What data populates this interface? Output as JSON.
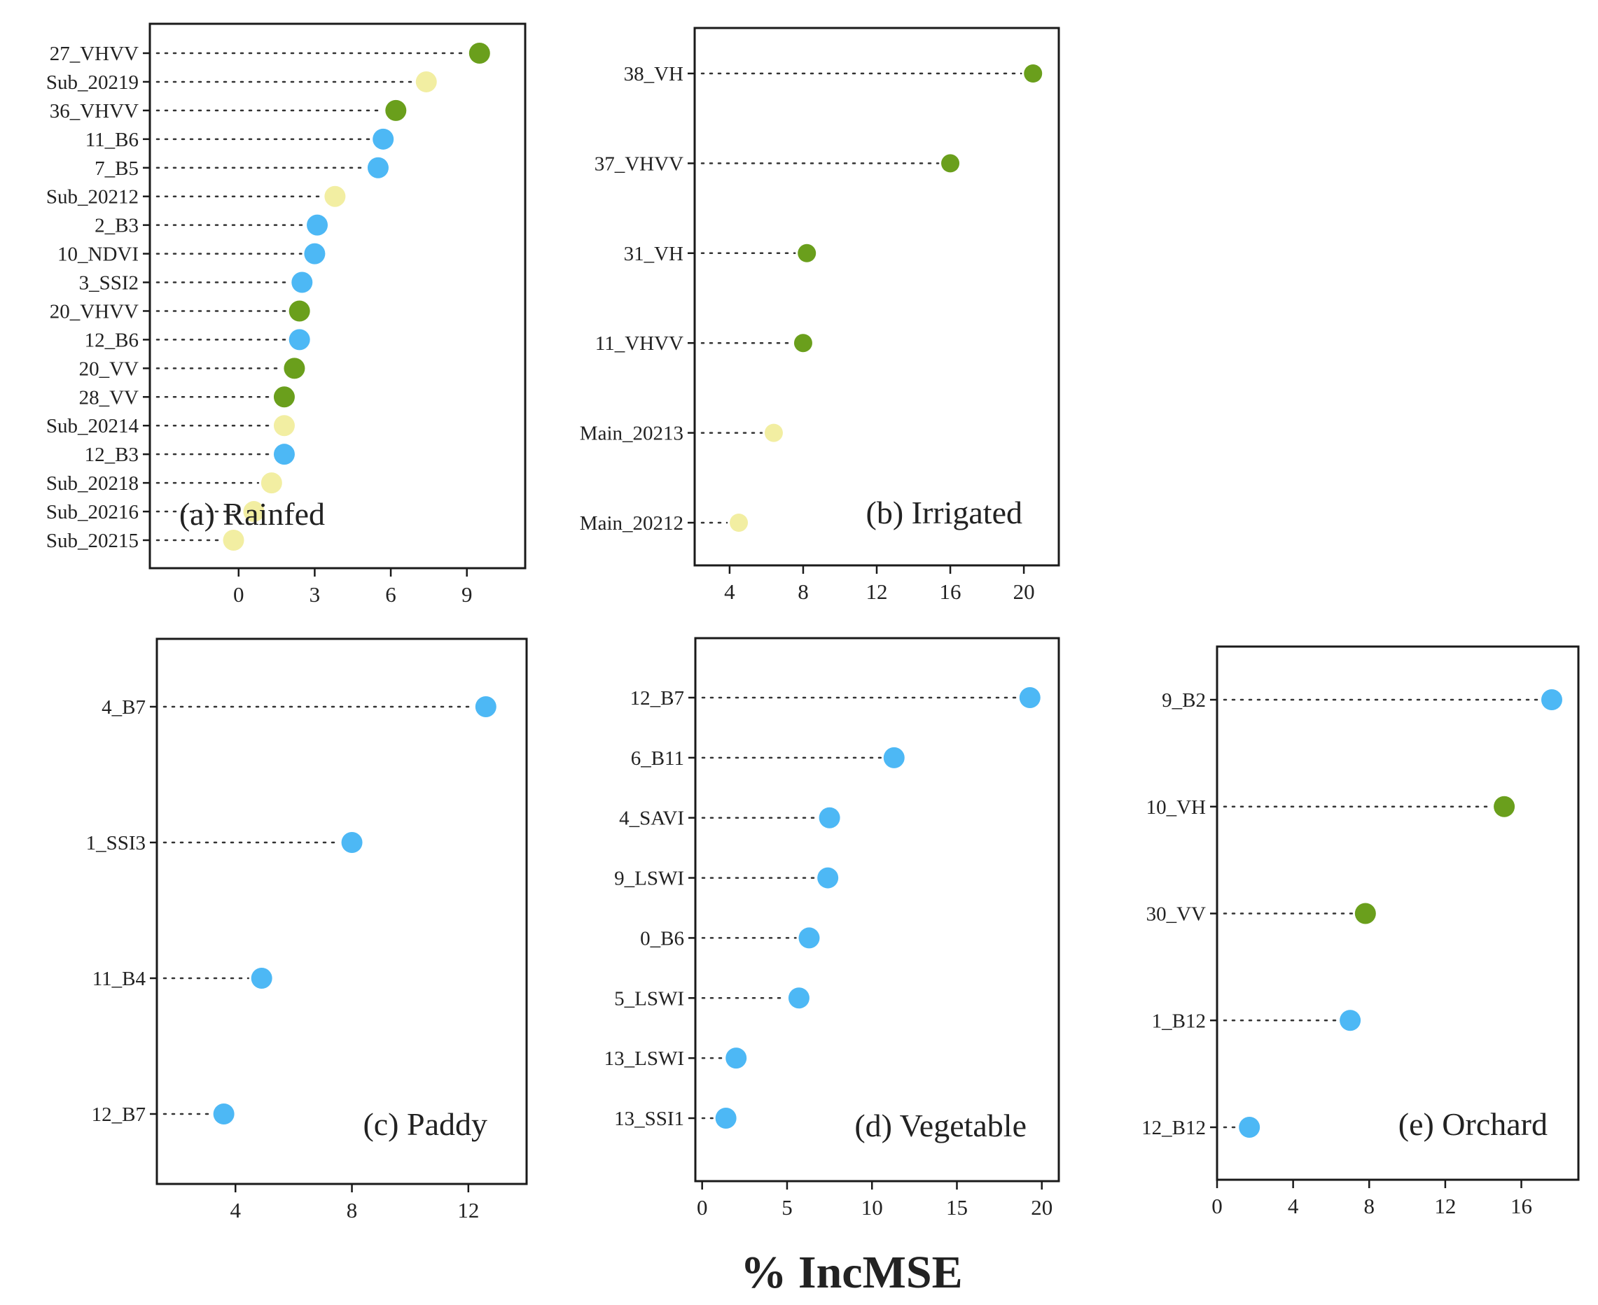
{
  "figure": {
    "xaxis_title": "% IncMSE",
    "colors": {
      "sentinel1": "#6a9f1c",
      "sentinel2": "#4db8f5",
      "phenology": "#f2eea2",
      "leader": "#333333",
      "axis": "#1a1a1a"
    }
  },
  "chart_data": [
    {
      "type": "scatter",
      "title": "(a) Rainfed",
      "xlabel": "% IncMSE",
      "xlim": [
        -3.5,
        11.3
      ],
      "xticks": [
        0,
        3,
        6,
        9
      ],
      "categories": [
        "27_VHVV",
        "Sub_20219",
        "36_VHVV",
        "11_B6",
        "7_B5",
        "Sub_20212",
        "2_B3",
        "10_NDVI",
        "3_SSI2",
        "20_VHVV",
        "12_B6",
        "20_VV",
        "28_VV",
        "Sub_20214",
        "12_B3",
        "Sub_20218",
        "Sub_20216",
        "Sub_20215"
      ],
      "values": [
        9.5,
        7.4,
        6.2,
        5.7,
        5.5,
        3.8,
        3.1,
        3.0,
        2.5,
        2.4,
        2.4,
        2.2,
        1.8,
        1.8,
        1.8,
        1.3,
        0.6,
        -0.2
      ],
      "groups": [
        "sentinel1",
        "phenology",
        "sentinel1",
        "sentinel2",
        "sentinel2",
        "phenology",
        "sentinel2",
        "sentinel2",
        "sentinel2",
        "sentinel1",
        "sentinel2",
        "sentinel1",
        "sentinel1",
        "phenology",
        "sentinel2",
        "phenology",
        "phenology",
        "phenology"
      ]
    },
    {
      "type": "scatter",
      "title": "(b) Irrigated",
      "xlabel": "% IncMSE",
      "xlim": [
        2.1,
        21.9
      ],
      "xticks": [
        4,
        8,
        12,
        16,
        20
      ],
      "categories": [
        "38_VH",
        "37_VHVV",
        "31_VH",
        "11_VHVV",
        "Main_20213",
        "Main_20212"
      ],
      "values": [
        20.5,
        16.0,
        8.2,
        8.0,
        6.4,
        4.5
      ],
      "groups": [
        "sentinel1",
        "sentinel1",
        "sentinel1",
        "sentinel1",
        "phenology",
        "phenology"
      ]
    },
    {
      "type": "scatter",
      "title": "(c) Paddy",
      "xlabel": "% IncMSE",
      "xlim": [
        1.3,
        14.0
      ],
      "xticks": [
        4,
        8,
        12
      ],
      "categories": [
        "4_B7",
        "1_SSI3",
        "11_B4",
        "12_B7"
      ],
      "values": [
        12.6,
        8.0,
        4.9,
        3.6
      ],
      "groups": [
        "sentinel2",
        "sentinel2",
        "sentinel2",
        "sentinel2"
      ]
    },
    {
      "type": "scatter",
      "title": "(d) Vegetable",
      "xlabel": "% IncMSE",
      "xlim": [
        -0.4,
        21.0
      ],
      "xticks": [
        0,
        5,
        10,
        15,
        20
      ],
      "categories": [
        "12_B7",
        "6_B11",
        "4_SAVI",
        "9_LSWI",
        "0_B6",
        "5_LSWI",
        "13_LSWI",
        "13_SSI1"
      ],
      "values": [
        19.3,
        11.3,
        7.5,
        7.4,
        6.3,
        5.7,
        2.0,
        1.4
      ],
      "groups": [
        "sentinel2",
        "sentinel2",
        "sentinel2",
        "sentinel2",
        "sentinel2",
        "sentinel2",
        "sentinel2",
        "sentinel2"
      ]
    },
    {
      "type": "scatter",
      "title": "(e) Orchard",
      "xlabel": "% IncMSE",
      "xlim": [
        0.0,
        19.0
      ],
      "xticks": [
        0,
        4,
        8,
        12,
        16
      ],
      "categories": [
        "9_B2",
        "10_VH",
        "30_VV",
        "1_B12",
        "12_B12"
      ],
      "values": [
        17.6,
        15.1,
        7.8,
        7.0,
        1.7
      ],
      "groups": [
        "sentinel2",
        "sentinel1",
        "sentinel1",
        "sentinel2",
        "sentinel2"
      ]
    }
  ]
}
